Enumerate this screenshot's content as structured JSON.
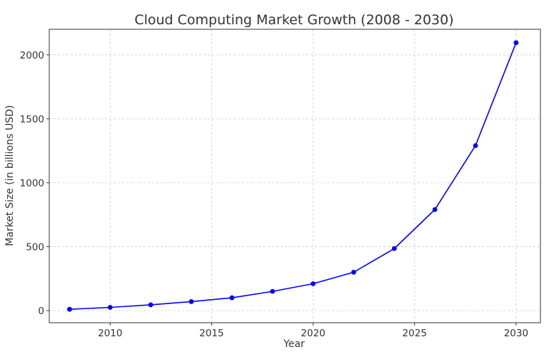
{
  "chart_data": {
    "type": "line",
    "title": "Cloud Computing Market Growth (2008 - 2030)",
    "xlabel": "Year",
    "ylabel": "Market Size (in billions USD)",
    "xlim": [
      2007,
      2031.2
    ],
    "ylim": [
      -95,
      2200
    ],
    "xticks": [
      2010,
      2015,
      2020,
      2025,
      2030
    ],
    "yticks": [
      0,
      500,
      1000,
      1500,
      2000
    ],
    "grid": true,
    "series": [
      {
        "color": "#0000ff",
        "marker": "circle",
        "x": [
          2008,
          2010,
          2012,
          2014,
          2016,
          2018,
          2020,
          2022,
          2024,
          2026,
          2028,
          2030
        ],
        "y": [
          10,
          25,
          45,
          70,
          100,
          150,
          210,
          300,
          485,
          790,
          1290,
          2095
        ]
      }
    ]
  }
}
